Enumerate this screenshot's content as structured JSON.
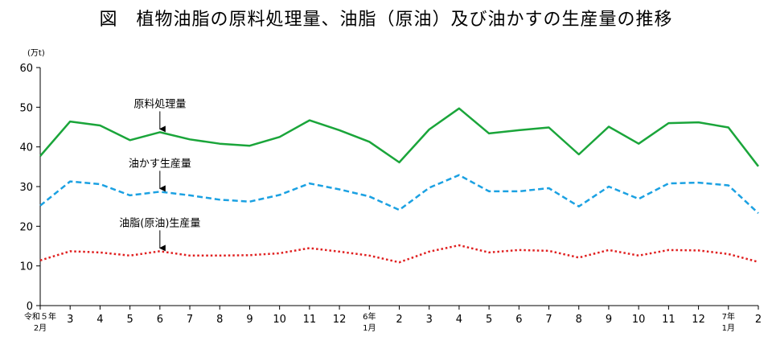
{
  "chart_data": {
    "type": "line",
    "title": "図　植物油脂の原料処理量、油脂（原油）及び油かすの生産量の推移",
    "ylabel": "(万t)",
    "ylim": [
      0,
      60
    ],
    "yticks": [
      0,
      10,
      20,
      30,
      40,
      50,
      60
    ],
    "grid": false,
    "categories": [
      {
        "line1": "令和５年",
        "line2": "2月"
      },
      {
        "line1": "3",
        "line2": ""
      },
      {
        "line1": "4",
        "line2": ""
      },
      {
        "line1": "5",
        "line2": ""
      },
      {
        "line1": "6",
        "line2": ""
      },
      {
        "line1": "7",
        "line2": ""
      },
      {
        "line1": "8",
        "line2": ""
      },
      {
        "line1": "9",
        "line2": ""
      },
      {
        "line1": "10",
        "line2": ""
      },
      {
        "line1": "11",
        "line2": ""
      },
      {
        "line1": "12",
        "line2": ""
      },
      {
        "line1": "6年",
        "line2": "1月"
      },
      {
        "line1": "2",
        "line2": ""
      },
      {
        "line1": "3",
        "line2": ""
      },
      {
        "line1": "4",
        "line2": ""
      },
      {
        "line1": "5",
        "line2": ""
      },
      {
        "line1": "6",
        "line2": ""
      },
      {
        "line1": "7",
        "line2": ""
      },
      {
        "line1": "8",
        "line2": ""
      },
      {
        "line1": "9",
        "line2": ""
      },
      {
        "line1": "10",
        "line2": ""
      },
      {
        "line1": "11",
        "line2": ""
      },
      {
        "line1": "12",
        "line2": ""
      },
      {
        "line1": "7年",
        "line2": "1月"
      },
      {
        "line1": "2",
        "line2": ""
      }
    ],
    "series": [
      {
        "name": "原料処理量",
        "color": "#1aa53a",
        "style": "solid",
        "label_position": 4,
        "values": [
          37.7,
          46.4,
          45.4,
          41.7,
          43.7,
          41.9,
          40.8,
          40.3,
          42.5,
          46.7,
          44.2,
          41.3,
          36.1,
          44.4,
          49.7,
          43.4,
          44.2,
          44.9,
          38.1,
          45.1,
          40.8,
          46.0,
          46.2,
          44.9,
          35.1
        ]
      },
      {
        "name": "油かす生産量",
        "color": "#1ba1e2",
        "style": "dashed",
        "label_position": 4,
        "values": [
          25.2,
          31.3,
          30.6,
          27.8,
          28.7,
          27.8,
          26.7,
          26.2,
          27.9,
          30.8,
          29.3,
          27.5,
          24.1,
          29.7,
          32.9,
          28.8,
          28.8,
          29.6,
          25.0,
          30.0,
          26.9,
          30.8,
          31.0,
          30.3,
          23.3
        ]
      },
      {
        "name": "油脂(原油)生産量",
        "color": "#e02020",
        "style": "dotted",
        "label_position": 4,
        "values": [
          11.4,
          13.7,
          13.4,
          12.6,
          13.7,
          12.6,
          12.6,
          12.7,
          13.2,
          14.5,
          13.6,
          12.6,
          10.9,
          13.6,
          15.2,
          13.4,
          14.0,
          13.8,
          12.1,
          14.0,
          12.6,
          14.0,
          13.9,
          13.0,
          11.0
        ]
      }
    ]
  }
}
